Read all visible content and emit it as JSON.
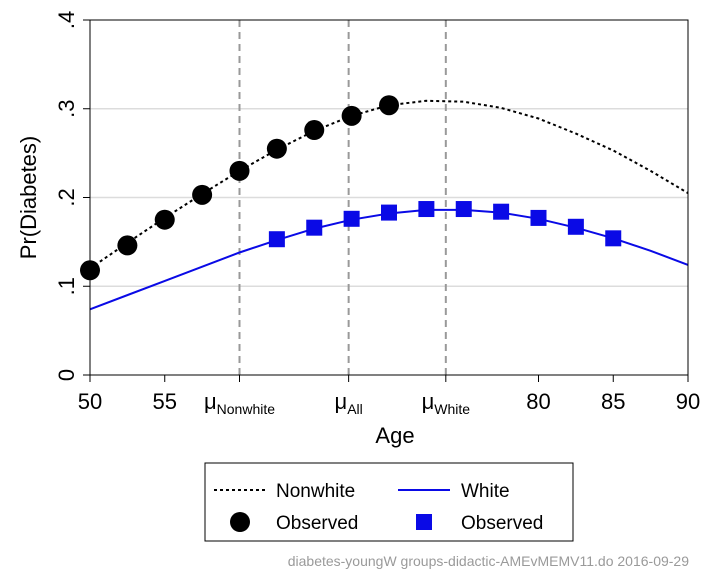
{
  "chart_data": {
    "type": "line",
    "xlabel": "Age",
    "ylabel": "Pr(Diabetes)",
    "xlim": [
      50,
      90
    ],
    "ylim": [
      0,
      0.4
    ],
    "x_ticks": [
      {
        "value": 50,
        "label": "50"
      },
      {
        "value": 55,
        "label": "55"
      },
      {
        "value": 80,
        "label": "80"
      },
      {
        "value": 85,
        "label": "85"
      },
      {
        "value": 90,
        "label": "90"
      }
    ],
    "mu_ticks": [
      {
        "value": 60,
        "base": "μ",
        "sub": "Nonwhite"
      },
      {
        "value": 67.3,
        "base": "μ",
        "sub": "All"
      },
      {
        "value": 73.8,
        "base": "μ",
        "sub": "White"
      }
    ],
    "y_ticks": [
      {
        "value": 0,
        "label": "0"
      },
      {
        "value": 0.1,
        "label": ".1"
      },
      {
        "value": 0.2,
        "label": ".2"
      },
      {
        "value": 0.3,
        "label": ".3"
      },
      {
        "value": 0.4,
        "label": ".4"
      }
    ],
    "grid": "horizontal",
    "series": [
      {
        "name": "Nonwhite",
        "style": "dashed-line",
        "color": "#000000",
        "x": [
          50,
          52.5,
          55,
          57.5,
          60,
          62.5,
          65,
          67.5,
          70,
          72.5,
          75,
          77.5,
          80,
          82.5,
          85,
          87.5,
          90
        ],
        "y": [
          0.12,
          0.149,
          0.177,
          0.204,
          0.23,
          0.254,
          0.275,
          0.292,
          0.304,
          0.309,
          0.308,
          0.301,
          0.289,
          0.272,
          0.253,
          0.23,
          0.205
        ]
      },
      {
        "name": "Observed",
        "style": "circle-markers",
        "color": "#000000",
        "x": [
          50,
          52.5,
          55,
          57.5,
          60,
          62.5,
          65,
          67.5,
          70
        ],
        "y": [
          0.118,
          0.146,
          0.175,
          0.203,
          0.23,
          0.255,
          0.276,
          0.292,
          0.304
        ]
      },
      {
        "name": "White",
        "style": "solid-line",
        "color": "#0a0ae6",
        "x": [
          50,
          55,
          60,
          62.5,
          65,
          67.5,
          70,
          72.5,
          75,
          77.5,
          80,
          82.5,
          85,
          87.5,
          90
        ],
        "y": [
          0.074,
          0.106,
          0.138,
          0.152,
          0.165,
          0.175,
          0.182,
          0.186,
          0.186,
          0.183,
          0.176,
          0.166,
          0.154,
          0.14,
          0.124
        ]
      },
      {
        "name": "Observed",
        "style": "square-markers",
        "color": "#0a0ae6",
        "x": [
          62.5,
          65,
          67.5,
          70,
          72.5,
          75,
          77.5,
          80,
          82.5,
          85
        ],
        "y": [
          0.153,
          0.166,
          0.176,
          0.183,
          0.187,
          0.187,
          0.184,
          0.177,
          0.167,
          0.154
        ]
      }
    ],
    "reference_lines": {
      "axis": "x",
      "values": [
        60,
        67.3,
        73.8
      ],
      "style": "dashed",
      "color": "#999999"
    },
    "legend": {
      "position": "bottom",
      "entries": [
        "Nonwhite",
        "White",
        "Observed",
        "Observed"
      ]
    }
  },
  "footer": {
    "note": "diabetes-youngW groups-didactic-AMEvMEMV11.do 2016-09-29"
  }
}
